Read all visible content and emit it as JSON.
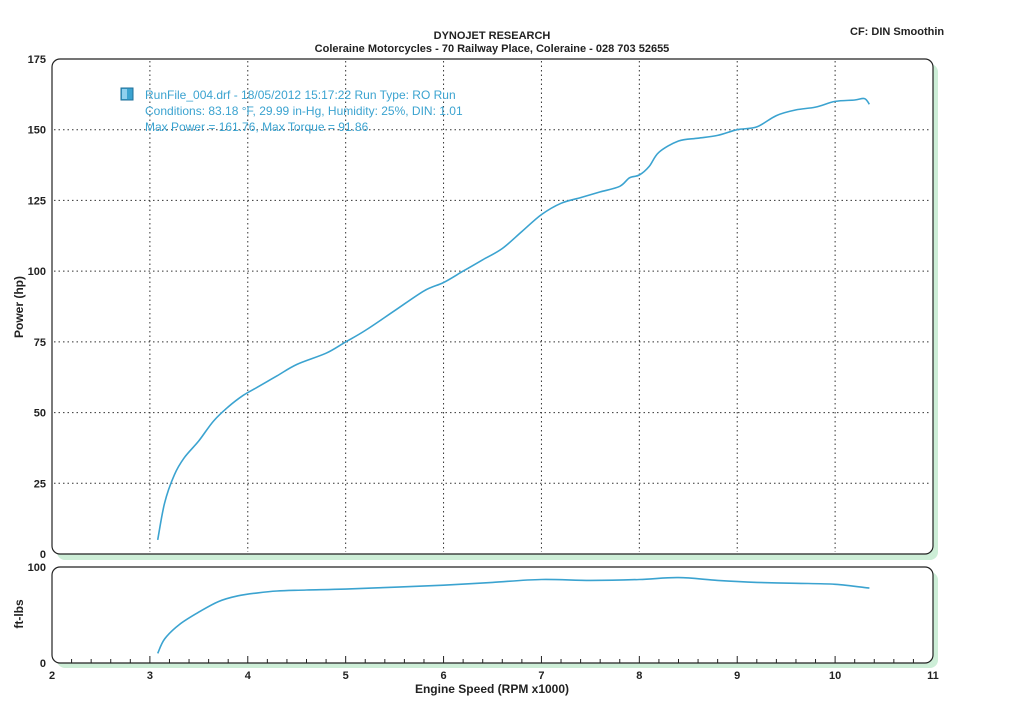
{
  "header": {
    "title": "DYNOJET RESEARCH",
    "subtitle": "Coleraine Motorcycles - 70 Railway Place,  Coleraine - 028 703 52655",
    "cf_note": "CF: DIN  Smoothin"
  },
  "legend": {
    "line1": "RunFile_004.drf - 18/05/2012 15:17:22  Run Type: RO  Run",
    "line2": "Conditions: 83.18 °F, 29.99 in-Hg,  Humidity:  25%, DIN: 1.01",
    "line3": "Max Power = 161.76, Max Torque = 91.86"
  },
  "colors": {
    "curve": "#3ba3d0",
    "panel_shadow": "#cdeed7",
    "grid": "#333333"
  },
  "chart_data": [
    {
      "type": "line",
      "title": "",
      "xlabel": "",
      "ylabel": "Power (hp)",
      "xlim": [
        2,
        11
      ],
      "ylim": [
        0,
        175
      ],
      "xticks": [
        2,
        3,
        4,
        5,
        6,
        7,
        8,
        9,
        10,
        11
      ],
      "yticks": [
        0,
        25,
        50,
        75,
        100,
        125,
        150,
        175
      ],
      "grid": true,
      "series": [
        {
          "x": [
            3.08,
            3.15,
            3.25,
            3.35,
            3.5,
            3.65,
            3.8,
            3.95,
            4.1,
            4.3,
            4.5,
            4.8,
            5.0,
            5.2,
            5.5,
            5.8,
            6.0,
            6.2,
            6.4,
            6.6,
            6.8,
            7.0,
            7.2,
            7.4,
            7.6,
            7.8,
            7.9,
            8.0,
            8.1,
            8.2,
            8.4,
            8.6,
            8.8,
            9.0,
            9.2,
            9.4,
            9.6,
            9.8,
            10.0,
            10.2,
            10.3,
            10.35
          ],
          "y": [
            5,
            18,
            28,
            34,
            40,
            47,
            52,
            56,
            59,
            63,
            67,
            71,
            75,
            79,
            86,
            93,
            96,
            100,
            104,
            108,
            114,
            120,
            124,
            126,
            128,
            130,
            133,
            134,
            137,
            142,
            146,
            147,
            148,
            150,
            151,
            155,
            157,
            158,
            160,
            160.5,
            161,
            159
          ]
        }
      ]
    },
    {
      "type": "line",
      "title": "",
      "xlabel": "Engine Speed (RPM x1000)",
      "ylabel": "ft-lbs",
      "xlim": [
        2,
        11
      ],
      "ylim": [
        0,
        100
      ],
      "xticks": [
        2,
        3,
        4,
        5,
        6,
        7,
        8,
        9,
        10,
        11
      ],
      "yticks": [
        0,
        100
      ],
      "grid": false,
      "series": [
        {
          "x": [
            3.08,
            3.15,
            3.3,
            3.5,
            3.7,
            3.9,
            4.1,
            4.3,
            4.6,
            5.0,
            5.5,
            6.0,
            6.5,
            7.0,
            7.5,
            8.0,
            8.4,
            8.8,
            9.2,
            9.6,
            10.0,
            10.35
          ],
          "y": [
            10,
            25,
            40,
            53,
            64,
            70,
            73,
            75,
            76,
            77,
            79,
            81,
            84,
            87,
            86,
            87,
            89,
            86,
            84,
            83,
            82,
            78
          ]
        }
      ]
    }
  ]
}
